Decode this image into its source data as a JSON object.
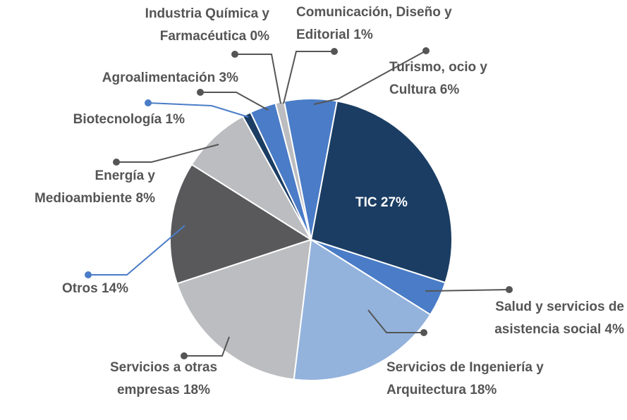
{
  "chart_data": {
    "type": "pie",
    "categories": [
      "TIC",
      "Salud y servicios de asistencia social",
      "Servicios de Ingeniería y Arquitectura",
      "Servicios a otras empresas",
      "Otros",
      "Energía y Medioambiente",
      "Biotecnología",
      "Agroalimentación",
      "Industria Química y Farmacéutica",
      "Comunicación, Diseño y Editorial",
      "Turismo, ocio y Cultura"
    ],
    "values": [
      27,
      4,
      18,
      18,
      14,
      8,
      1,
      3,
      0,
      1,
      6
    ],
    "value_labels": [
      "27%",
      "4%",
      "18%",
      "18%",
      "14%",
      "8%",
      "1%",
      "3%",
      "0%",
      "1%",
      "6%"
    ],
    "colors": [
      "#1b3d63",
      "#4a7cc7",
      "#93b3dd",
      "#bcbdc0",
      "#59595b",
      "#bcbdc0",
      "#1b3d63",
      "#4a7cc7",
      "#93b3dd",
      "#bcbdc0",
      "#4a7cc7"
    ]
  }
}
